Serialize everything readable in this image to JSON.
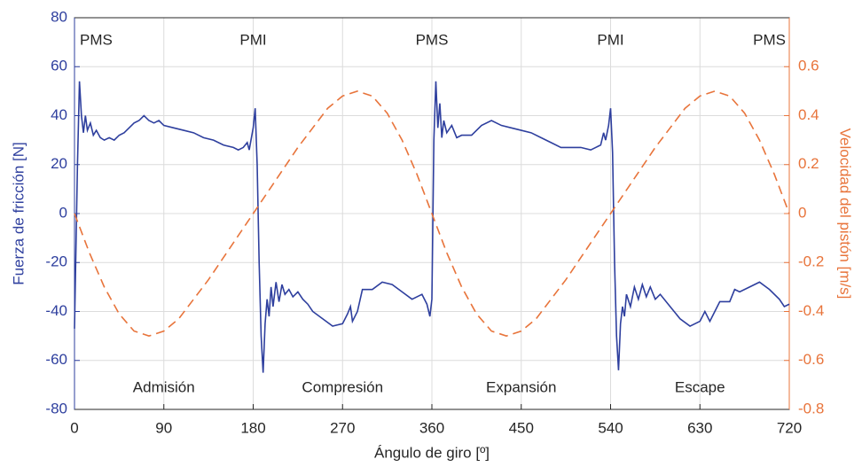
{
  "chart_data": {
    "type": "line",
    "xlabel": "Ángulo de giro [º]",
    "ylabel": "Fuerza de fricción [N]",
    "y2label": "Velocidad del pistón [m/s]",
    "xlim": [
      0,
      720
    ],
    "xticks": [
      0,
      90,
      180,
      270,
      360,
      450,
      540,
      630,
      720
    ],
    "ylim": [
      -80,
      80
    ],
    "yticks": [
      -80,
      -60,
      -40,
      -20,
      0,
      20,
      40,
      60,
      80
    ],
    "y2lim": [
      -0.8,
      0.8
    ],
    "y2ticks": [
      -0.8,
      -0.6,
      -0.4,
      -0.2,
      0,
      0.2,
      0.4,
      0.6
    ],
    "grid": true,
    "top_labels": [
      "PMS",
      "PMI",
      "PMS",
      "PMI",
      "PMS"
    ],
    "phase_labels": [
      "Admisión",
      "Compresión",
      "Expansión",
      "Escape"
    ],
    "series": [
      {
        "color": "#2e3f9e",
        "dash": false,
        "x": [
          0,
          3,
          5,
          7,
          9,
          11,
          13,
          16,
          19,
          22,
          26,
          30,
          35,
          40,
          45,
          50,
          55,
          60,
          65,
          70,
          75,
          80,
          85,
          90,
          100,
          110,
          120,
          130,
          140,
          150,
          160,
          165,
          170,
          174,
          176,
          180,
          182,
          184,
          186,
          188,
          190,
          192,
          194,
          196,
          198,
          200,
          203,
          206,
          209,
          212,
          216,
          220,
          225,
          230,
          235,
          240,
          250,
          260,
          270,
          275,
          278,
          280,
          285,
          290,
          300,
          310,
          320,
          330,
          340,
          350,
          355,
          358,
          360,
          362,
          364,
          366,
          368,
          370,
          372,
          375,
          380,
          385,
          390,
          400,
          410,
          420,
          430,
          440,
          450,
          460,
          470,
          480,
          490,
          500,
          510,
          520,
          525,
          530,
          533,
          535,
          538,
          540,
          542,
          544,
          546,
          548,
          550,
          552,
          554,
          556,
          560,
          564,
          568,
          572,
          576,
          580,
          585,
          590,
          600,
          610,
          620,
          630,
          635,
          640,
          645,
          650,
          660,
          665,
          670,
          680,
          690,
          700,
          710,
          715,
          720
        ],
        "values": [
          -47,
          20,
          54,
          40,
          33,
          40,
          34,
          37,
          32,
          34,
          31,
          30,
          31,
          30,
          32,
          33,
          35,
          37,
          38,
          40,
          38,
          37,
          38,
          36,
          35,
          34,
          33,
          31,
          30,
          28,
          27,
          26,
          27,
          29,
          26,
          35,
          43,
          20,
          -20,
          -50,
          -65,
          -45,
          -35,
          -42,
          -30,
          -38,
          -28,
          -36,
          -29,
          -33,
          -31,
          -34,
          -32,
          -35,
          -37,
          -40,
          -43,
          -46,
          -45,
          -41,
          -38,
          -44,
          -40,
          -31,
          -31,
          -28,
          -29,
          -32,
          -35,
          -33,
          -37,
          -42,
          -35,
          30,
          54,
          35,
          45,
          31,
          38,
          33,
          36,
          31,
          32,
          32,
          36,
          38,
          36,
          35,
          34,
          33,
          31,
          29,
          27,
          27,
          27,
          26,
          27,
          28,
          33,
          30,
          36,
          43,
          25,
          -20,
          -50,
          -64,
          -45,
          -38,
          -42,
          -33,
          -38,
          -30,
          -35,
          -29,
          -34,
          -30,
          -35,
          -33,
          -38,
          -43,
          -46,
          -44,
          -40,
          -44,
          -40,
          -36,
          -36,
          -31,
          -32,
          -30,
          -28,
          -31,
          -35,
          -38,
          -37
        ]
      },
      {
        "color": "#e8743b",
        "dash": true,
        "axis": "y2",
        "x": [
          0,
          15,
          30,
          45,
          60,
          75,
          90,
          105,
          120,
          135,
          150,
          165,
          180,
          195,
          210,
          225,
          240,
          255,
          270,
          285,
          300,
          315,
          330,
          345,
          360,
          375,
          390,
          405,
          420,
          435,
          450,
          465,
          480,
          495,
          510,
          525,
          540,
          555,
          570,
          585,
          600,
          615,
          630,
          645,
          660,
          675,
          690,
          705,
          720
        ],
        "values": [
          0,
          -0.16,
          -0.3,
          -0.41,
          -0.48,
          -0.5,
          -0.48,
          -0.43,
          -0.35,
          -0.27,
          -0.18,
          -0.09,
          0,
          0.09,
          0.18,
          0.27,
          0.35,
          0.43,
          0.48,
          0.5,
          0.48,
          0.41,
          0.3,
          0.16,
          0,
          -0.16,
          -0.3,
          -0.41,
          -0.48,
          -0.5,
          -0.48,
          -0.43,
          -0.35,
          -0.27,
          -0.18,
          -0.09,
          0,
          0.09,
          0.18,
          0.27,
          0.35,
          0.43,
          0.48,
          0.5,
          0.48,
          0.41,
          0.3,
          0.16,
          0
        ]
      }
    ]
  }
}
